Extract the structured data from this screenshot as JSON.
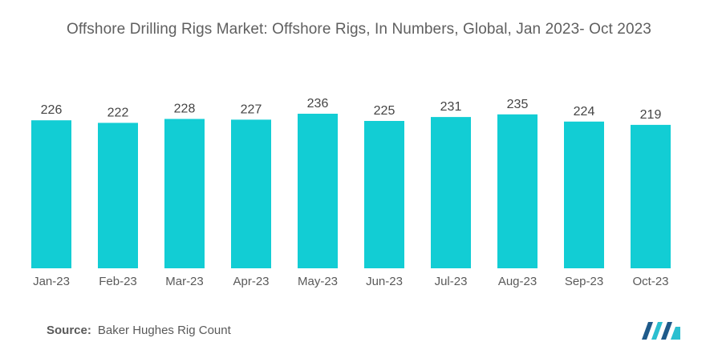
{
  "title": "Offshore Drilling Rigs Market: Offshore Rigs, In Numbers, Global, Jan 2023- Oct 2023",
  "source": {
    "label": "Source:",
    "text": "Baker Hughes Rig Count"
  },
  "colors": {
    "bar": "#12CDD4",
    "text": "#5a5a5a",
    "logo_dark": "#1f5a8a",
    "logo_light": "#2bbfd0"
  },
  "logo_icon": "mordor-intelligence-logo-icon",
  "chart_data": {
    "type": "bar",
    "title": "Offshore Drilling Rigs Market: Offshore Rigs, In Numbers, Global, Jan 2023- Oct 2023",
    "categories": [
      "Jan-23",
      "Feb-23",
      "Mar-23",
      "Apr-23",
      "May-23",
      "Jun-23",
      "Jul-23",
      "Aug-23",
      "Sep-23",
      "Oct-23"
    ],
    "values": [
      226,
      222,
      228,
      227,
      236,
      225,
      231,
      235,
      224,
      219
    ],
    "xlabel": "",
    "ylabel": "",
    "ylim": [
      0,
      236
    ],
    "grid": false,
    "legend": "none",
    "data_labels": true
  }
}
